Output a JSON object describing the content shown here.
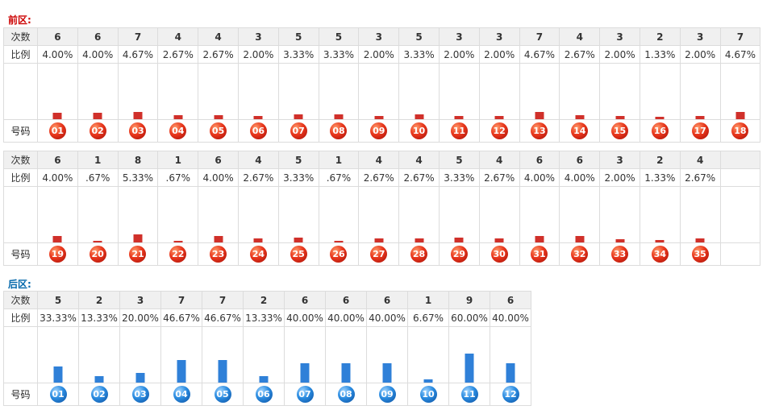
{
  "front": {
    "title": "前区:",
    "title_color": "#cc0000",
    "bar_color": "#d0302a",
    "row_labels": {
      "count": "次数",
      "ratio": "比例",
      "number": "号码"
    }
  },
  "back": {
    "title": "后区:",
    "title_color": "#0066aa",
    "bar_color": "#2f80d8",
    "row_labels": {
      "count": "次数",
      "ratio": "比例",
      "number": "号码"
    }
  },
  "chart_data": [
    {
      "type": "bar",
      "title": "前区:",
      "categories": [
        "01",
        "02",
        "03",
        "04",
        "05",
        "06",
        "07",
        "08",
        "09",
        "10",
        "11",
        "12",
        "13",
        "14",
        "15",
        "16",
        "17",
        "18",
        "19",
        "20",
        "21",
        "22",
        "23",
        "24",
        "25",
        "26",
        "27",
        "28",
        "29",
        "30",
        "31",
        "32",
        "33",
        "34",
        "35"
      ],
      "values": [
        6,
        6,
        7,
        4,
        4,
        3,
        5,
        5,
        3,
        5,
        3,
        3,
        7,
        4,
        3,
        2,
        3,
        7,
        6,
        1,
        8,
        1,
        6,
        4,
        5,
        1,
        4,
        4,
        5,
        4,
        6,
        6,
        3,
        2,
        4
      ],
      "ratios": [
        "4.00%",
        "4.00%",
        "4.67%",
        "2.67%",
        "2.67%",
        "2.00%",
        "3.33%",
        "3.33%",
        "2.00%",
        "3.33%",
        "2.00%",
        "2.00%",
        "4.67%",
        "2.67%",
        "2.00%",
        "1.33%",
        "2.00%",
        "4.67%",
        "4.00%",
        ".67%",
        "5.33%",
        ".67%",
        "4.00%",
        "2.67%",
        "3.33%",
        ".67%",
        "2.67%",
        "2.67%",
        "3.33%",
        "2.67%",
        "4.00%",
        "4.00%",
        "2.00%",
        "1.33%",
        "2.67%"
      ]
    },
    {
      "type": "bar",
      "title": "后区:",
      "categories": [
        "01",
        "02",
        "03",
        "04",
        "05",
        "06",
        "07",
        "08",
        "09",
        "10",
        "11",
        "12"
      ],
      "values": [
        5,
        2,
        3,
        7,
        7,
        2,
        6,
        6,
        6,
        1,
        9,
        6
      ],
      "ratios": [
        "33.33%",
        "13.33%",
        "20.00%",
        "46.67%",
        "46.67%",
        "13.33%",
        "40.00%",
        "40.00%",
        "40.00%",
        "6.67%",
        "60.00%",
        "40.00%"
      ]
    }
  ]
}
